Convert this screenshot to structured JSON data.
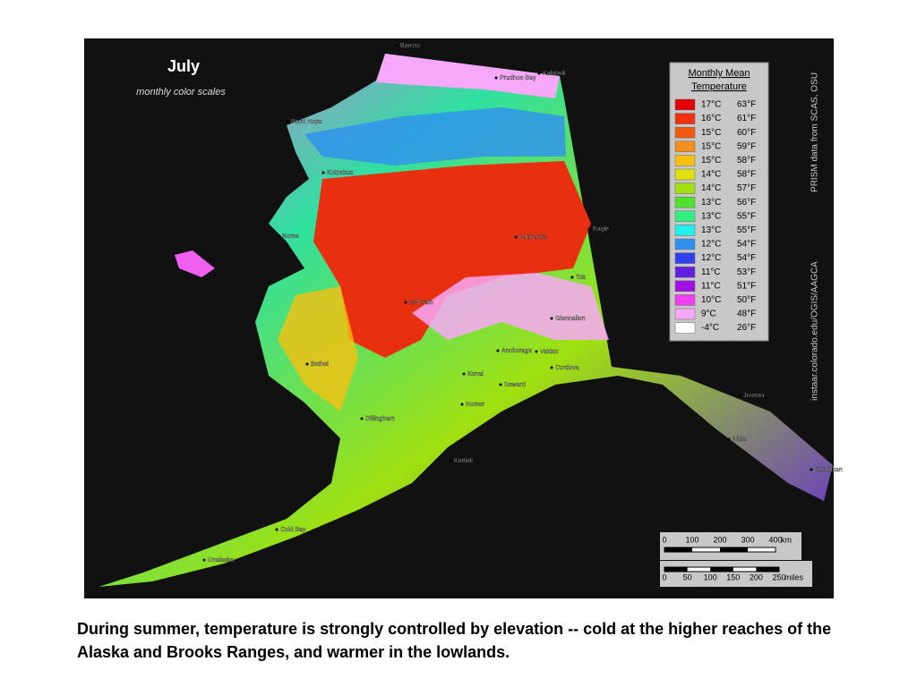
{
  "title": "July",
  "subtitle": "monthly color scales",
  "legend": {
    "title": "Monthly Mean Temperature",
    "items": [
      {
        "color": "#e00000",
        "celsius": "17°C",
        "fahrenheit": "63°F"
      },
      {
        "color": "#f03010",
        "celsius": "16°C",
        "fahrenheit": "61°F"
      },
      {
        "color": "#f05a10",
        "celsius": "15°C",
        "fahrenheit": "60°F"
      },
      {
        "color": "#f59020",
        "celsius": "15°C",
        "fahrenheit": "59°F"
      },
      {
        "color": "#f8c010",
        "celsius": "15°C",
        "fahrenheit": "58°F"
      },
      {
        "color": "#e0e010",
        "celsius": "14°C",
        "fahrenheit": "58°F"
      },
      {
        "color": "#a0e010",
        "celsius": "14°C",
        "fahrenheit": "57°F"
      },
      {
        "color": "#50e030",
        "celsius": "13°C",
        "fahrenheit": "56°F"
      },
      {
        "color": "#30f080",
        "celsius": "13°C",
        "fahrenheit": "55°F"
      },
      {
        "color": "#20f0f0",
        "celsius": "13°C",
        "fahrenheit": "55°F"
      },
      {
        "color": "#3090f0",
        "celsius": "12°C",
        "fahrenheit": "54°F"
      },
      {
        "color": "#3040f0",
        "celsius": "12°C",
        "fahrenheit": "54°F"
      },
      {
        "color": "#6020e0",
        "celsius": "11°C",
        "fahrenheit": "53°F"
      },
      {
        "color": "#a010e0",
        "celsius": "11°C",
        "fahrenheit": "51°F"
      },
      {
        "color": "#f040f0",
        "celsius": "10°C",
        "fahrenheit": "50°F"
      },
      {
        "color": "#f8a8f8",
        "celsius": "9°C",
        "fahrenheit": "48°F"
      },
      {
        "color": "#ffffff",
        "celsius": "-4°C",
        "fahrenheit": "26°F"
      }
    ]
  },
  "credit": "PRISM data from SCAS, OSU",
  "source": "instaar.colorado.edu/OGIS/AAGCA",
  "places": [
    "Barrow",
    "Prudhoe Bay",
    "Kaktovik",
    "Point Hope",
    "Kotzebue",
    "Nome",
    "Fairbanks",
    "Eagle",
    "Tok",
    "McGrath",
    "Glennallen",
    "Bethel",
    "Anchorage",
    "Valdez",
    "Cordova",
    "Kenai",
    "Seward",
    "Homer",
    "Dillingham",
    "Kodiak",
    "Juneau",
    "Sitka",
    "Ketchikan",
    "Cold Bay",
    "Unalaska"
  ],
  "scale": {
    "km": {
      "ticks": [
        0,
        100,
        200,
        300,
        400
      ],
      "unit": "km"
    },
    "miles": {
      "ticks": [
        0,
        50,
        100,
        150,
        200,
        250
      ],
      "unit": "miles"
    }
  },
  "caption": "During summer, temperature is strongly controlled by elevation -- cold at the higher reaches of the Alaska and Brooks Ranges, and warmer in the lowlands."
}
